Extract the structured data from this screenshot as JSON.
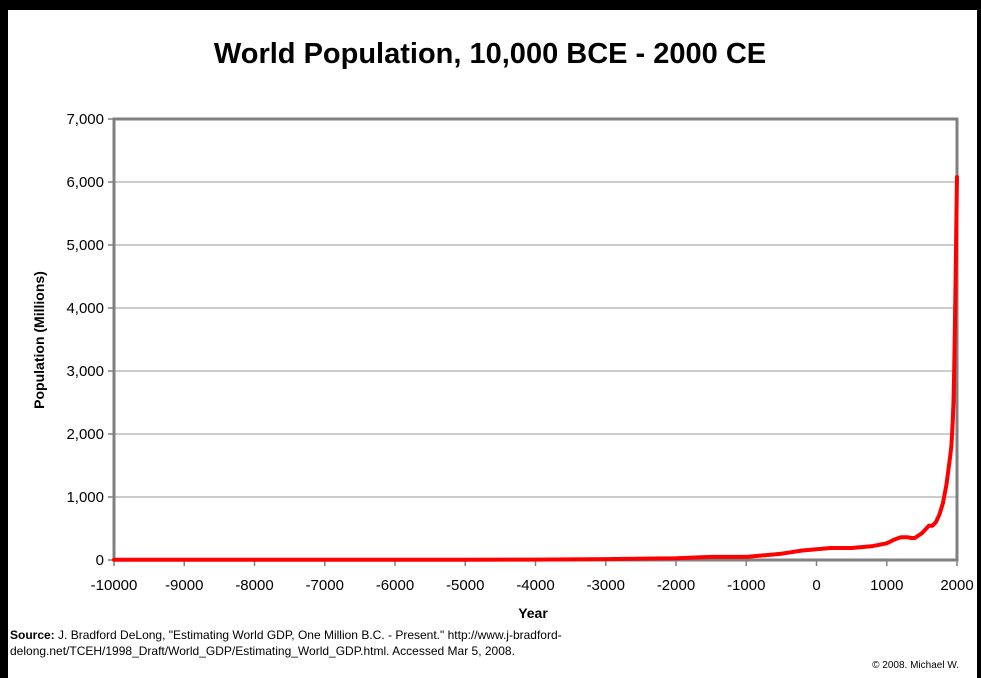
{
  "chart_data": {
    "type": "line",
    "title": "World Population, 10,000 BCE - 2000 CE",
    "xlabel": "Year",
    "ylabel": "Population (Millions)",
    "xlim": [
      -10000,
      2000
    ],
    "ylim": [
      0,
      7000
    ],
    "x_ticks": [
      -10000,
      -9000,
      -8000,
      -7000,
      -6000,
      -5000,
      -4000,
      -3000,
      -2000,
      -1000,
      0,
      1000,
      2000
    ],
    "x_tick_labels": [
      "-10000",
      "-9000",
      "-8000",
      "-7000",
      "-6000",
      "-5000",
      "-4000",
      "-3000",
      "-2000",
      "-1000",
      "0",
      "1000",
      "2000"
    ],
    "y_ticks": [
      0,
      1000,
      2000,
      3000,
      4000,
      5000,
      6000,
      7000
    ],
    "y_tick_labels": [
      "0",
      "1,000",
      "2,000",
      "3,000",
      "4,000",
      "5,000",
      "6,000",
      "7,000"
    ],
    "grid": "horizontal",
    "line_color": "#ff0000",
    "series": [
      {
        "x": [
          -10000,
          -9000,
          -8000,
          -7000,
          -6000,
          -5000,
          -4000,
          -3000,
          -2000,
          -1500,
          -1000,
          -500,
          -200,
          0,
          200,
          500,
          800,
          1000,
          1100,
          1200,
          1300,
          1350,
          1400,
          1500,
          1600,
          1650,
          1700,
          1750,
          1800,
          1850,
          1900,
          1920,
          1940,
          1950,
          1960,
          1970,
          1980,
          1990,
          2000
        ],
        "y": [
          4,
          5,
          5,
          5,
          5,
          5,
          7,
          14,
          27,
          50,
          50,
          100,
          150,
          170,
          190,
          190,
          220,
          265,
          320,
          360,
          360,
          350,
          350,
          425,
          545,
          545,
          600,
          720,
          900,
          1200,
          1625,
          1813,
          2213,
          2516,
          3020,
          3698,
          4448,
          5292,
          6080
        ]
      }
    ]
  },
  "source": {
    "label": "Source:",
    "text": "J. Bradford DeLong, \"Estimating World GDP, One Million B.C. - Present.\" http://www.j-bradford-delong.net/TCEH/1998_Draft/World_GDP/Estimating_World_GDP.html. Accessed Mar 5, 2008."
  },
  "copyright": "© 2008. Michael W."
}
